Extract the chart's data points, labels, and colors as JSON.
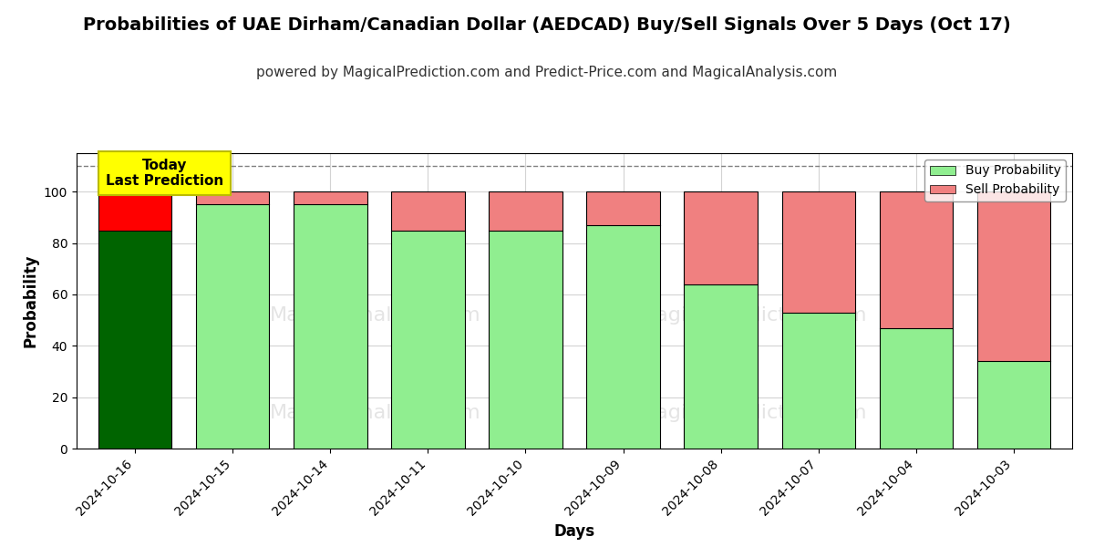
{
  "title": "Probabilities of UAE Dirham/Canadian Dollar (AEDCAD) Buy/Sell Signals Over 5 Days (Oct 17)",
  "subtitle": "powered by MagicalPrediction.com and Predict-Price.com and MagicalAnalysis.com",
  "xlabel": "Days",
  "ylabel": "Probability",
  "categories": [
    "2024-10-16",
    "2024-10-15",
    "2024-10-14",
    "2024-10-11",
    "2024-10-10",
    "2024-10-09",
    "2024-10-08",
    "2024-10-07",
    "2024-10-04",
    "2024-10-03"
  ],
  "buy_values": [
    85,
    95,
    95,
    85,
    85,
    87,
    64,
    53,
    47,
    34
  ],
  "sell_values": [
    15,
    5,
    5,
    15,
    15,
    13,
    36,
    47,
    53,
    66
  ],
  "buy_color_today": "#006400",
  "sell_color_today": "#FF0000",
  "buy_color_normal": "#90EE90",
  "sell_color_normal": "#F08080",
  "ylim": [
    0,
    115
  ],
  "dashed_line_y": 110,
  "legend_buy": "Buy Probability",
  "legend_sell": "Sell Probability",
  "today_label": "Today\nLast Prediction",
  "today_box_color": "#FFFF00",
  "today_box_edge": "#BBBB00",
  "title_fontsize": 14,
  "subtitle_fontsize": 11,
  "axis_label_fontsize": 12,
  "tick_fontsize": 10
}
